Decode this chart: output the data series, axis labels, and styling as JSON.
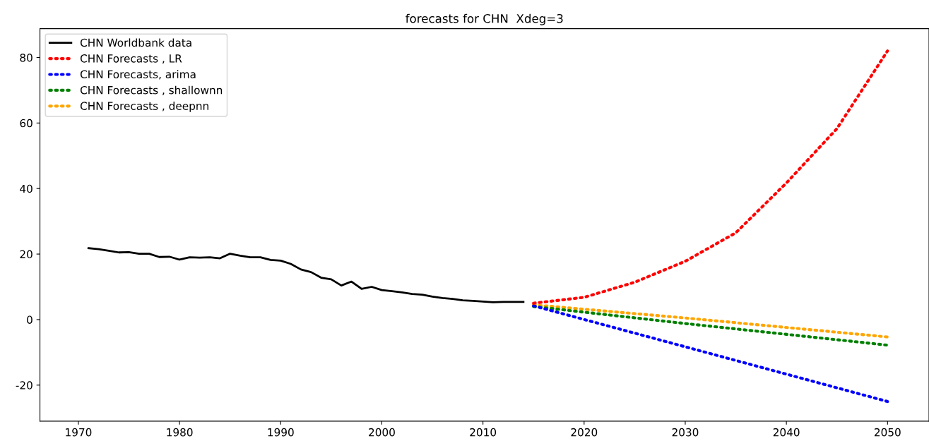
{
  "chart_data": {
    "type": "line",
    "title": "forecasts for CHN  Xdeg=3",
    "xlim": [
      1966.2,
      2054.1
    ],
    "xticks": [
      1970,
      1980,
      1990,
      2000,
      2010,
      2020,
      2030,
      2040,
      2050
    ],
    "ylim": [
      -31,
      88.8
    ],
    "yticks": [
      -20,
      0,
      20,
      40,
      60,
      80
    ],
    "grid": false,
    "legend": "top left",
    "series": [
      {
        "name": "CHN Worldbank data",
        "color": "#000000",
        "line_style": "solid",
        "x": [
          1971,
          1972,
          1973,
          1974,
          1975,
          1976,
          1977,
          1978,
          1979,
          1980,
          1981,
          1982,
          1983,
          1984,
          1985,
          1986,
          1987,
          1988,
          1989,
          1990,
          1991,
          1992,
          1993,
          1994,
          1995,
          1996,
          1997,
          1998,
          1999,
          2000,
          2001,
          2002,
          2003,
          2004,
          2005,
          2006,
          2007,
          2008,
          2009,
          2010,
          2011,
          2012,
          2013,
          2014
        ],
        "values": [
          21.8,
          21.5,
          21.0,
          20.5,
          20.6,
          20.1,
          20.1,
          19.1,
          19.2,
          18.3,
          19.0,
          18.9,
          19.0,
          18.7,
          20.1,
          19.5,
          19.0,
          19.0,
          18.2,
          18.0,
          17.0,
          15.3,
          14.5,
          12.8,
          12.3,
          10.4,
          11.6,
          9.4,
          10.0,
          9.0,
          8.7,
          8.3,
          7.8,
          7.6,
          7.0,
          6.6,
          6.3,
          5.9,
          5.7,
          5.5,
          5.3,
          5.4,
          5.4,
          5.4
        ]
      },
      {
        "name": "CHN Forecasts , LR",
        "color": "#ff0000",
        "line_style": "dotted",
        "x": [
          2015,
          2020,
          2025,
          2030,
          2035,
          2040,
          2045,
          2050
        ],
        "values": [
          5.0,
          6.8,
          11.4,
          17.8,
          26.5,
          41.7,
          58.3,
          82.0
        ]
      },
      {
        "name": "CHN Forecasts, arima",
        "color": "#0000ff",
        "line_style": "dotted",
        "x": [
          2015,
          2030,
          2050
        ],
        "values": [
          4.2,
          -8.3,
          -25.0
        ]
      },
      {
        "name": "CHN Forecasts , shallownn",
        "color": "#008000",
        "line_style": "dotted",
        "x": [
          2015,
          2030,
          2050
        ],
        "values": [
          4.0,
          -1.2,
          -7.8
        ]
      },
      {
        "name": "CHN Forecasts , deepnn",
        "color": "#ffa500",
        "line_style": "dotted",
        "x": [
          2015,
          2030,
          2050
        ],
        "values": [
          4.5,
          0.5,
          -5.3
        ]
      }
    ]
  }
}
